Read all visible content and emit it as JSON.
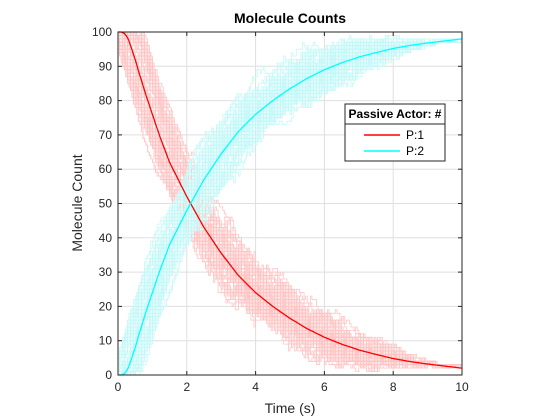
{
  "chart_data": {
    "type": "line",
    "title": "Molecule Counts",
    "xlabel": "Time (s)",
    "ylabel": "Molecule Count",
    "xlim": [
      0,
      10
    ],
    "ylim": [
      0,
      100
    ],
    "xticks": [
      0,
      2,
      4,
      6,
      8,
      10
    ],
    "yticks": [
      0,
      10,
      20,
      30,
      40,
      50,
      60,
      70,
      80,
      90,
      100
    ],
    "grid": true,
    "legend": {
      "title": "Passive Actor: #",
      "placement": "right",
      "entries": [
        "P:1",
        "P:2"
      ]
    },
    "series": [
      {
        "name": "P:1",
        "color": "#ff0000",
        "band_color": "#ffc4c4",
        "x": [
          0,
          0.1,
          0.2,
          0.3,
          0.4,
          0.5,
          0.6,
          0.8,
          1,
          1.2,
          1.5,
          2,
          2.5,
          3,
          3.5,
          4,
          4.5,
          5,
          5.5,
          6,
          6.5,
          7,
          7.5,
          8,
          8.5,
          9,
          9.5,
          10
        ],
        "values": [
          100,
          100,
          99.5,
          98,
          95,
          92,
          88.5,
          82,
          76,
          70,
          62,
          52,
          43,
          35.5,
          29,
          24,
          20,
          16.5,
          13.5,
          11,
          9,
          7.3,
          6,
          4.8,
          3.9,
          3.2,
          2.6,
          2
        ]
      },
      {
        "name": "P:2",
        "color": "#00ffff",
        "band_color": "#c4f8f8",
        "x": [
          0,
          0.1,
          0.2,
          0.3,
          0.4,
          0.5,
          0.6,
          0.8,
          1,
          1.2,
          1.5,
          2,
          2.5,
          3,
          3.5,
          4,
          4.5,
          5,
          5.5,
          6,
          6.5,
          7,
          7.5,
          8,
          8.5,
          9,
          9.5,
          10
        ],
        "values": [
          0,
          0,
          0.5,
          2,
          5,
          8,
          11.5,
          18,
          24,
          30,
          38,
          48,
          57,
          64.5,
          71,
          76,
          80,
          83.5,
          86.5,
          89,
          91,
          92.7,
          94,
          95.2,
          96.1,
          96.8,
          97.4,
          98
        ]
      }
    ]
  }
}
